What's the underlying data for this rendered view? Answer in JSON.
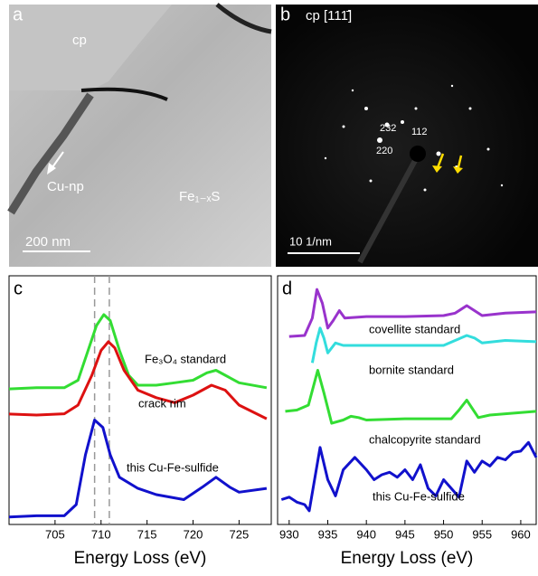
{
  "panels": [
    {
      "label": "a",
      "annotations": [
        "cp",
        "Cu-np",
        "Fe₁₋ₓS"
      ],
      "scale_bar": "200 nm"
    },
    {
      "label": "b",
      "title": "cp [111̄]",
      "annotations": [
        "232",
        "220",
        "112"
      ],
      "scale_bar": "10 1/nm"
    }
  ],
  "chart_data": [
    {
      "type": "line",
      "label": "c",
      "xlabel": "Energy Loss (eV)",
      "xlim": [
        700,
        728.5
      ],
      "xticks": [
        705,
        710,
        715,
        720,
        725
      ],
      "ylim": [
        0,
        10
      ],
      "reference_lines": [
        709.3,
        710.9
      ],
      "series": [
        {
          "name": "Fe₃O₄ standard",
          "color": "#33dd33",
          "x": [
            700,
            703,
            706,
            707.5,
            708.5,
            709.5,
            710.3,
            711,
            712,
            713,
            714,
            716,
            718,
            720,
            721.5,
            722.5,
            723.5,
            725,
            728
          ],
          "values": [
            5.45,
            5.5,
            5.5,
            5.8,
            6.9,
            8.0,
            8.44,
            8.2,
            7.0,
            6.0,
            5.6,
            5.6,
            5.7,
            5.8,
            6.1,
            6.2,
            6.0,
            5.7,
            5.5
          ]
        },
        {
          "name": "crack rim",
          "color": "#dd1111",
          "x": [
            700,
            703,
            706,
            707.5,
            709,
            710,
            710.8,
            711.5,
            712.5,
            714,
            716,
            718,
            720,
            722,
            723.5,
            725,
            728
          ],
          "values": [
            4.44,
            4.4,
            4.45,
            4.8,
            6.0,
            7.0,
            7.35,
            7.1,
            6.2,
            5.4,
            5.1,
            4.9,
            5.2,
            5.6,
            5.4,
            4.8,
            4.25
          ]
        },
        {
          "name": "this Cu-Fe-sulfide",
          "color": "#1111cc",
          "x": [
            700,
            703,
            706,
            707.3,
            708.3,
            709.3,
            710.2,
            711,
            712,
            714,
            716,
            719,
            721,
            722.5,
            724,
            725,
            728
          ],
          "values": [
            0.3,
            0.35,
            0.35,
            0.8,
            2.8,
            4.2,
            3.9,
            2.8,
            1.9,
            1.45,
            1.2,
            1.0,
            1.5,
            1.9,
            1.5,
            1.3,
            1.45
          ]
        }
      ]
    },
    {
      "type": "line",
      "label": "d",
      "xlabel": "Energy Loss (eV)",
      "xlim": [
        928.5,
        962
      ],
      "xticks": [
        930,
        935,
        940,
        945,
        950,
        955,
        960
      ],
      "ylim": [
        0,
        10
      ],
      "series": [
        {
          "name": "covellite standard",
          "color": "#9933cc",
          "x": [
            930,
            932,
            933,
            933.6,
            934.3,
            935,
            935.7,
            936.5,
            937.2,
            940,
            945,
            950,
            951.5,
            953,
            954,
            955,
            958,
            962
          ],
          "values": [
            7.56,
            7.6,
            8.3,
            9.45,
            8.9,
            7.9,
            8.2,
            8.6,
            8.3,
            8.36,
            8.36,
            8.4,
            8.5,
            8.8,
            8.6,
            8.4,
            8.5,
            8.55
          ]
        },
        {
          "name": "bornite standard",
          "color": "#33dddd",
          "x": [
            933,
            933.5,
            934,
            934.5,
            935,
            936,
            937,
            940,
            945,
            950,
            951.5,
            953,
            954,
            955,
            958,
            962
          ],
          "values": [
            6.5,
            7.3,
            7.9,
            7.5,
            6.9,
            7.3,
            7.2,
            7.2,
            7.2,
            7.2,
            7.4,
            7.6,
            7.5,
            7.3,
            7.4,
            7.35
          ]
        },
        {
          "name": "chalcopyrite standard",
          "color": "#33dd33",
          "x": [
            929.5,
            931,
            932.5,
            933.7,
            934.5,
            935.5,
            937,
            938,
            939,
            940,
            945,
            951,
            952,
            953,
            954.5,
            956,
            962
          ],
          "values": [
            4.55,
            4.6,
            4.8,
            6.2,
            5.3,
            4.07,
            4.2,
            4.35,
            4.3,
            4.2,
            4.25,
            4.25,
            4.6,
            5.0,
            4.3,
            4.4,
            4.55
          ]
        },
        {
          "name": "this Cu-Fe-sulfide",
          "color": "#1111cc",
          "x": [
            929,
            930,
            931,
            932,
            932.6,
            934,
            935,
            936,
            937,
            938.5,
            940,
            941,
            942,
            943,
            944,
            945,
            946,
            947,
            948,
            949,
            950,
            951,
            952,
            953,
            954,
            955,
            956,
            957,
            958,
            959,
            960,
            961,
            962
          ],
          "values": [
            1.0,
            1.1,
            0.9,
            0.8,
            0.55,
            3.1,
            1.8,
            1.15,
            2.2,
            2.7,
            2.2,
            1.8,
            2.0,
            2.1,
            1.9,
            2.2,
            1.8,
            2.4,
            1.45,
            1.15,
            1.8,
            1.45,
            1.1,
            2.55,
            2.1,
            2.55,
            2.35,
            2.7,
            2.6,
            2.9,
            2.95,
            3.3,
            2.7
          ]
        }
      ]
    }
  ]
}
